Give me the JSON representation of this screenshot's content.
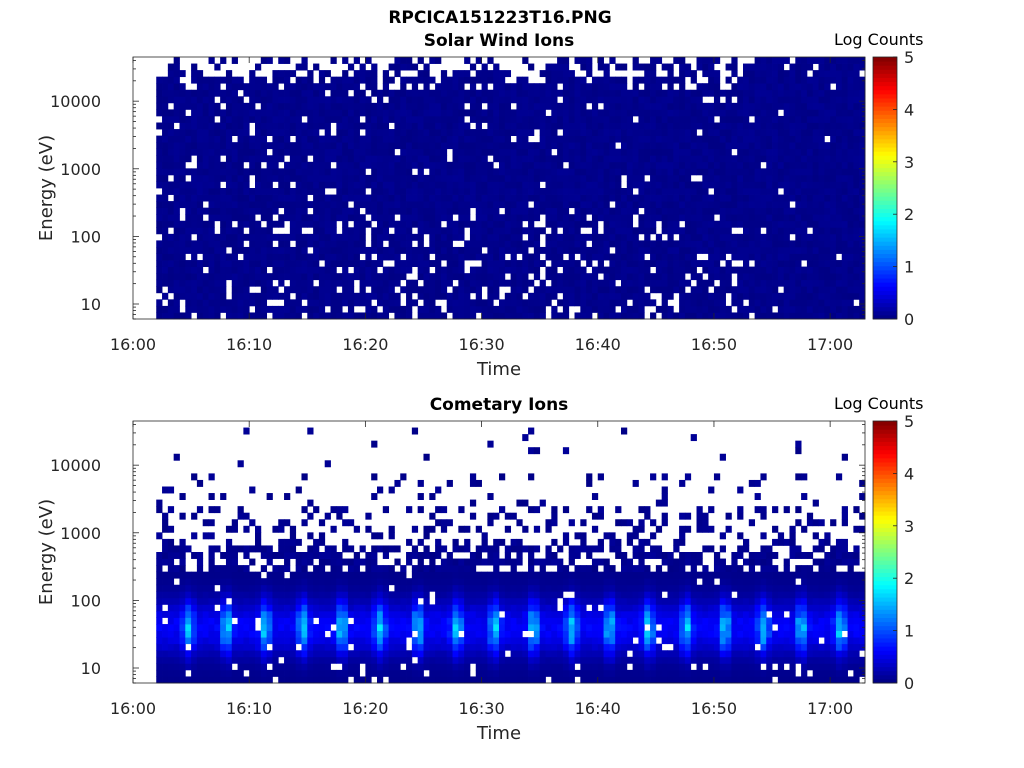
{
  "figure": {
    "title": "RPCICA151223T16.PNG"
  },
  "chart_data": [
    {
      "type": "heatmap",
      "title": "Solar Wind Ions",
      "xlabel": "Time",
      "ylabel": "Energy (eV)",
      "x_ticks": [
        "16:00",
        "16:10",
        "16:20",
        "16:30",
        "16:40",
        "16:50",
        "17:00"
      ],
      "x_tick_minutes": [
        0,
        10,
        20,
        30,
        40,
        50,
        60
      ],
      "xlim_minutes": [
        0,
        63
      ],
      "data_x_range_minutes": [
        2,
        63
      ],
      "y_scale": "log",
      "y_ticks": [
        10,
        100,
        1000,
        10000
      ],
      "ylim": [
        6,
        45000
      ],
      "colorbar": {
        "label": "Log Counts",
        "ticks": [
          0,
          1,
          2,
          3,
          4,
          5
        ],
        "range": [
          0,
          5
        ],
        "colormap": "jet"
      },
      "summary": "Mostly log counts ~0 (dark blue) across all energies, with scattered empty bins; dense coverage 20-10000 eV",
      "seed": 11,
      "profile": "solar"
    },
    {
      "type": "heatmap",
      "title": "Cometary Ions",
      "xlabel": "Time",
      "ylabel": "Energy (eV)",
      "x_ticks": [
        "16:00",
        "16:10",
        "16:20",
        "16:30",
        "16:40",
        "16:50",
        "17:00"
      ],
      "x_tick_minutes": [
        0,
        10,
        20,
        30,
        40,
        50,
        60
      ],
      "xlim_minutes": [
        0,
        63
      ],
      "data_x_range_minutes": [
        2,
        63
      ],
      "y_scale": "log",
      "y_ticks": [
        10,
        100,
        1000,
        10000
      ],
      "ylim": [
        6,
        45000
      ],
      "colorbar": {
        "label": "Log Counts",
        "ticks": [
          0,
          1,
          2,
          3,
          4,
          5
        ],
        "range": [
          0,
          5
        ],
        "colormap": "jet"
      },
      "peak_energy_eV": 40,
      "peak_log_counts": 1.8,
      "peak_period_minutes": 3.3,
      "summary": "Periodic enhancements peaking near 30-50 eV reaching ~1.5-1.8 log counts; sparse counts above 1000 eV",
      "seed": 29,
      "profile": "cometary"
    }
  ]
}
